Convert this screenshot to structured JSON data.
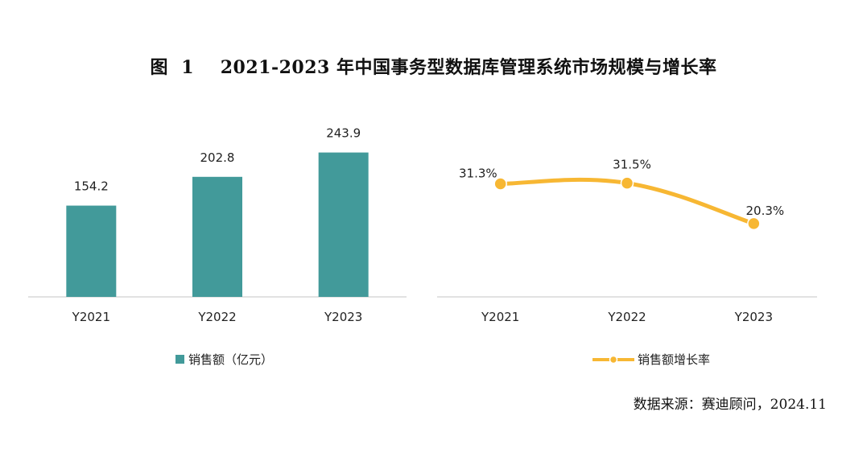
{
  "title": "图  1    2021-2023 年中国事务型数据库管理系统市场规模与增长率",
  "source": "数据来源：赛迪顾问，2024.11",
  "colors": {
    "bar": "#429A9A",
    "line": "#F7B733",
    "axis": "#D9D9D9"
  },
  "chart_data": [
    {
      "type": "bar",
      "categories": [
        "Y2021",
        "Y2022",
        "Y2023"
      ],
      "series": [
        {
          "name": "销售额（亿元）",
          "values": [
            154.2,
            202.8,
            243.9
          ]
        }
      ],
      "data_labels": [
        "154.2",
        "202.8",
        "243.9"
      ],
      "ylim": [
        0,
        280
      ],
      "grid": false,
      "legend": "bottom"
    },
    {
      "type": "line",
      "categories": [
        "Y2021",
        "Y2022",
        "Y2023"
      ],
      "series": [
        {
          "name": "销售额增长率",
          "values": [
            31.3,
            31.5,
            20.3
          ]
        }
      ],
      "data_labels": [
        "31.3%",
        "31.5%",
        "20.3%"
      ],
      "ylim": [
        0,
        45
      ],
      "grid": false,
      "smooth": true,
      "legend": "bottom"
    }
  ]
}
